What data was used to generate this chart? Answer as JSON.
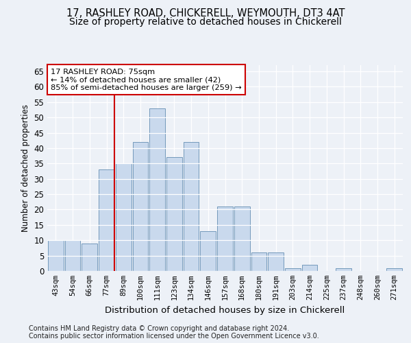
{
  "title1": "17, RASHLEY ROAD, CHICKERELL, WEYMOUTH, DT3 4AT",
  "title2": "Size of property relative to detached houses in Chickerell",
  "xlabel": "Distribution of detached houses by size in Chickerell",
  "ylabel": "Number of detached properties",
  "categories": [
    "43sqm",
    "54sqm",
    "66sqm",
    "77sqm",
    "89sqm",
    "100sqm",
    "111sqm",
    "123sqm",
    "134sqm",
    "146sqm",
    "157sqm",
    "168sqm",
    "180sqm",
    "191sqm",
    "203sqm",
    "214sqm",
    "225sqm",
    "237sqm",
    "248sqm",
    "260sqm",
    "271sqm"
  ],
  "values": [
    10,
    10,
    9,
    33,
    35,
    42,
    53,
    37,
    42,
    13,
    21,
    21,
    6,
    6,
    1,
    2,
    0,
    1,
    0,
    0,
    1
  ],
  "bar_color": "#c9d9ed",
  "bar_edge_color": "#7399bb",
  "vline_color": "#cc0000",
  "annotation_line1": "17 RASHLEY ROAD: 75sqm",
  "annotation_line2": "← 14% of detached houses are smaller (42)",
  "annotation_line3": "85% of semi-detached houses are larger (259) →",
  "annotation_box_color": "#ffffff",
  "annotation_box_edge": "#cc0000",
  "ylim": [
    0,
    67
  ],
  "yticks": [
    0,
    5,
    10,
    15,
    20,
    25,
    30,
    35,
    40,
    45,
    50,
    55,
    60,
    65
  ],
  "footer1": "Contains HM Land Registry data © Crown copyright and database right 2024.",
  "footer2": "Contains public sector information licensed under the Open Government Licence v3.0.",
  "bg_color": "#edf1f7",
  "plot_bg_color": "#edf1f7",
  "grid_color": "#ffffff",
  "title1_fontsize": 10.5,
  "title2_fontsize": 10,
  "xlabel_fontsize": 9.5,
  "ylabel_fontsize": 8.5,
  "footer_fontsize": 7
}
